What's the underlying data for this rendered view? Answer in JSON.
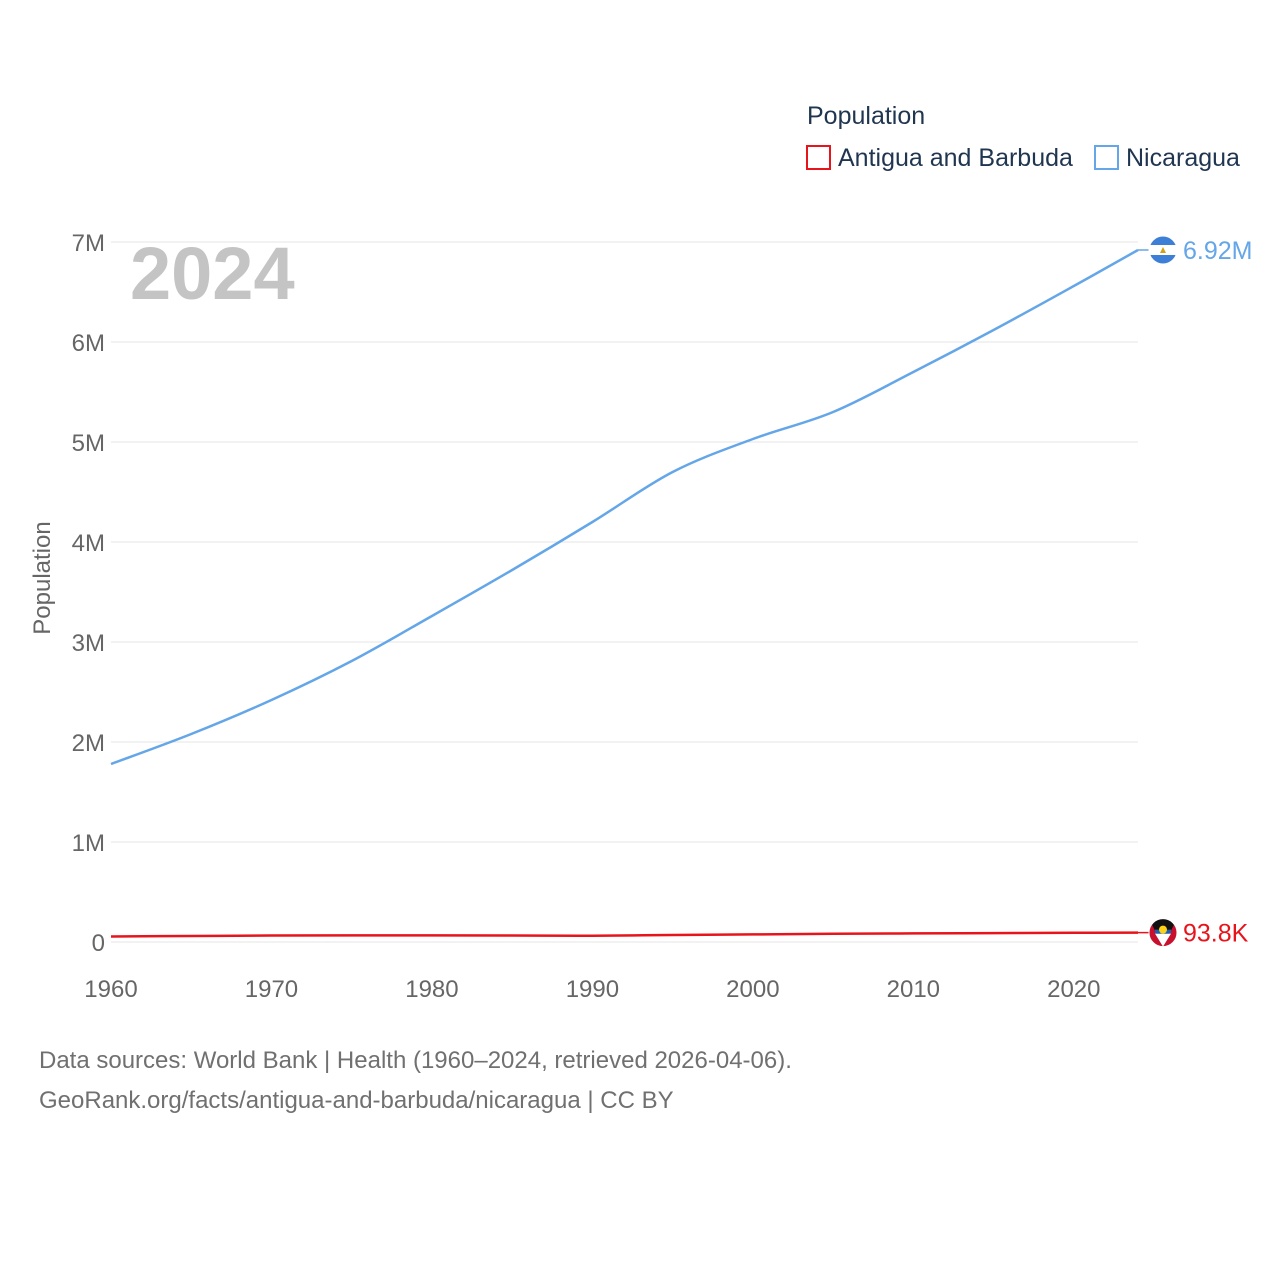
{
  "chart_data": {
    "type": "line",
    "title": "Population",
    "year_label": "2024",
    "ylabel": "Population",
    "xlim": [
      1960,
      2024
    ],
    "ylim": [
      0,
      7000000
    ],
    "x_ticks": [
      "1960",
      "1970",
      "1980",
      "1990",
      "2000",
      "2010",
      "2020"
    ],
    "y_ticks": [
      "0",
      "1M",
      "2M",
      "3M",
      "4M",
      "5M",
      "6M",
      "7M"
    ],
    "x": [
      1960,
      1965,
      1970,
      1975,
      1980,
      1985,
      1990,
      1995,
      2000,
      2005,
      2010,
      2015,
      2020,
      2024
    ],
    "series": [
      {
        "name": "Antigua and Barbuda",
        "color": "#e8141b",
        "end_label": "93.8K",
        "flag_icon": "antigua-and-barbuda-flag-icon",
        "values": [
          55000,
          60000,
          65000,
          66000,
          66000,
          65000,
          63000,
          70000,
          76000,
          82000,
          86000,
          89000,
          92000,
          93800
        ]
      },
      {
        "name": "Nicaragua",
        "color": "#64a6e8",
        "end_label": "6.92M",
        "flag_icon": "nicaragua-flag-icon",
        "values": [
          1780000,
          2080000,
          2420000,
          2810000,
          3260000,
          3720000,
          4200000,
          4700000,
          5030000,
          5300000,
          5700000,
          6120000,
          6560000,
          6920000
        ]
      }
    ],
    "grid": true
  },
  "footer": {
    "line1": "Data sources: World Bank | Health (1960–2024, retrieved 2026-04-06).",
    "line2": "GeoRank.org/facts/antigua-and-barbuda/nicaragua | CC BY"
  }
}
